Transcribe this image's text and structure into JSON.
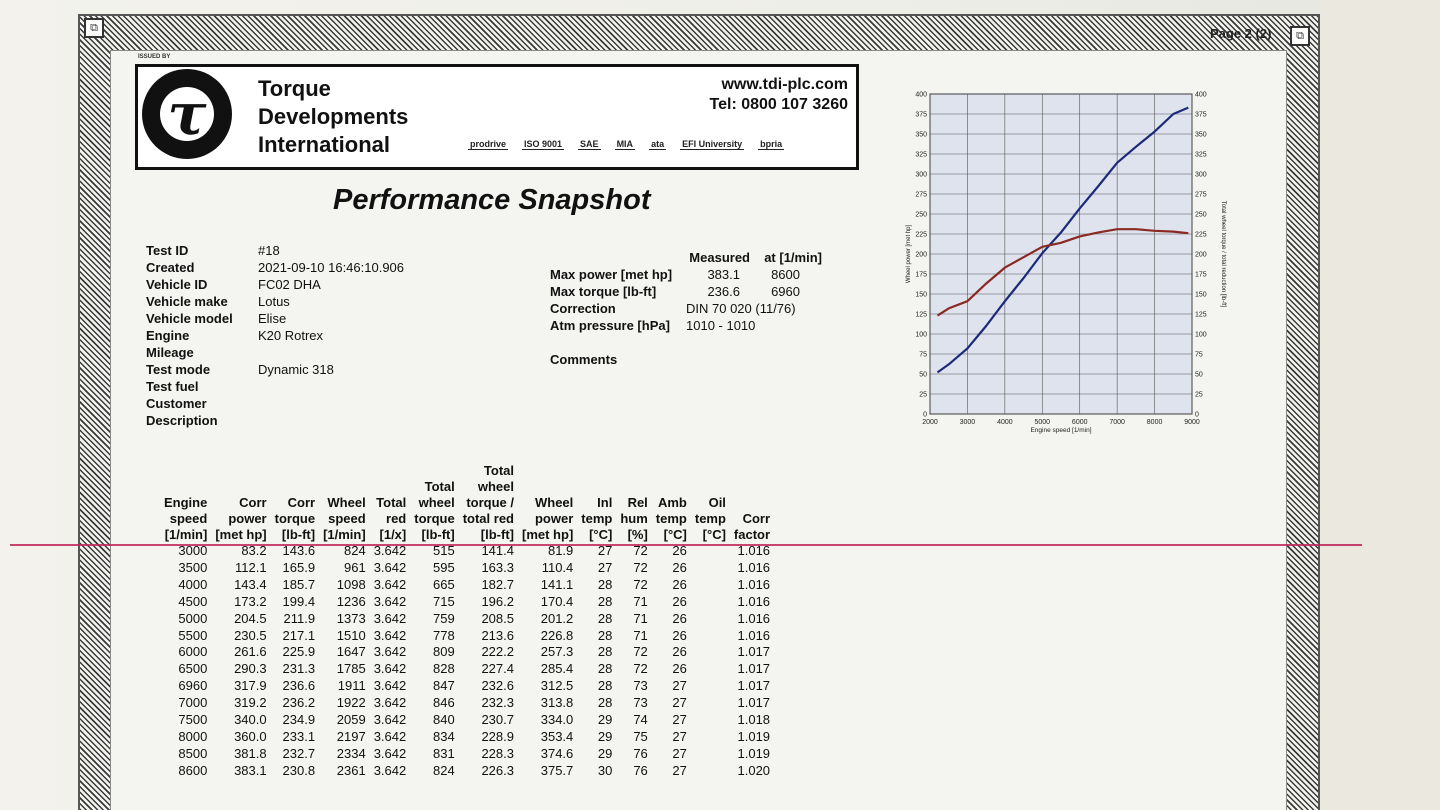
{
  "page_label": "Page 2 (2)",
  "issued_by": "ISSUED BY",
  "company": {
    "line1": "Torque",
    "line2": "Developments",
    "line3": "International",
    "logo_letter": "τ"
  },
  "contact": {
    "website": "www.tdi-plc.com",
    "phone": "Tel: 0800 107 3260"
  },
  "accreditations": [
    "prodrive",
    "ISO 9001",
    "SAE",
    "MIA",
    "ata",
    "EFI University",
    "bpria"
  ],
  "title": "Performance Snapshot",
  "test_info": [
    {
      "label": "Test ID",
      "value": "#18"
    },
    {
      "label": "Created",
      "value": "2021-09-10 16:46:10.906"
    },
    {
      "label": "Vehicle ID",
      "value": "FC02 DHA"
    },
    {
      "label": "Vehicle make",
      "value": "Lotus"
    },
    {
      "label": "Vehicle model",
      "value": "Elise"
    },
    {
      "label": "Engine",
      "value": "K20 Rotrex"
    },
    {
      "label": "Mileage",
      "value": ""
    },
    {
      "label": "Test mode",
      "value": "Dynamic 318"
    },
    {
      "label": "Test fuel",
      "value": ""
    },
    {
      "label": "Customer",
      "value": ""
    },
    {
      "label": "Description",
      "value": ""
    }
  ],
  "measured": {
    "header_measured": "Measured",
    "header_at": "at [1/min]",
    "max_power_label": "Max power [met hp]",
    "max_power_value": "383.1",
    "max_power_rpm": "8600",
    "max_torque_label": "Max torque [lb-ft]",
    "max_torque_value": "236.6",
    "max_torque_rpm": "6960",
    "correction_label": "Correction",
    "correction_value": "DIN 70 020 (11/76)",
    "atm_label": "Atm pressure [hPa]",
    "atm_value": "1010 - 1010",
    "comments_label": "Comments"
  },
  "chart_data": {
    "type": "line",
    "xlabel": "Engine speed [1/min]",
    "ylabel_left": "Wheel power [met hp]",
    "ylabel_right": "Total wheel torque / total reduction [lb-ft]",
    "xlim": [
      2000,
      9000
    ],
    "ylim": [
      0,
      400
    ],
    "x_ticks": [
      2000,
      3000,
      4000,
      5000,
      6000,
      7000,
      8000,
      9000
    ],
    "y_ticks": [
      0,
      25,
      50,
      75,
      100,
      125,
      150,
      175,
      200,
      225,
      250,
      275,
      300,
      325,
      350,
      375,
      400
    ],
    "grid": true,
    "series": [
      {
        "color": "#1c2a7a",
        "x": [
          2200,
          2500,
          3000,
          3500,
          4000,
          4500,
          5000,
          5500,
          6000,
          6500,
          7000,
          7500,
          8000,
          8500,
          8900
        ],
        "values": [
          52,
          62,
          82,
          110,
          141,
          170,
          201,
          227,
          257,
          285,
          314,
          334,
          353,
          375,
          383
        ]
      },
      {
        "color": "#8a2a22",
        "x": [
          2200,
          2500,
          3000,
          3500,
          4000,
          4500,
          5000,
          5500,
          6000,
          6500,
          7000,
          7500,
          8000,
          8500,
          8900
        ],
        "values": [
          123,
          132,
          141,
          163,
          183,
          196,
          209,
          214,
          222,
          227,
          231,
          231,
          229,
          228,
          226
        ]
      }
    ]
  },
  "table": {
    "headers": [
      [
        "Engine",
        "speed",
        "[1/min]"
      ],
      [
        "Corr",
        "power",
        "[met hp]"
      ],
      [
        "Corr",
        "torque",
        "[lb-ft]"
      ],
      [
        "Wheel",
        "speed",
        "[1/min]"
      ],
      [
        "Total",
        "red",
        "[1/x]"
      ],
      [
        "Total",
        "wheel",
        "torque",
        "[lb-ft]"
      ],
      [
        "Total",
        "wheel",
        "torque /",
        "total red",
        "[lb-ft]"
      ],
      [
        "Wheel",
        "power",
        "[met hp]"
      ],
      [
        "Inl",
        "temp",
        "[°C]"
      ],
      [
        "Rel",
        "hum",
        "[%]"
      ],
      [
        "Amb",
        "temp",
        "[°C]"
      ],
      [
        "Oil",
        "temp",
        "[°C]"
      ],
      [
        "Corr",
        "factor"
      ]
    ],
    "rows": [
      [
        "3000",
        "83.2",
        "143.6",
        "824",
        "3.642",
        "515",
        "141.4",
        "81.9",
        "27",
        "72",
        "26",
        "",
        "1.016"
      ],
      [
        "3500",
        "112.1",
        "165.9",
        "961",
        "3.642",
        "595",
        "163.3",
        "110.4",
        "27",
        "72",
        "26",
        "",
        "1.016"
      ],
      [
        "4000",
        "143.4",
        "185.7",
        "1098",
        "3.642",
        "665",
        "182.7",
        "141.1",
        "28",
        "72",
        "26",
        "",
        "1.016"
      ],
      [
        "4500",
        "173.2",
        "199.4",
        "1236",
        "3.642",
        "715",
        "196.2",
        "170.4",
        "28",
        "71",
        "26",
        "",
        "1.016"
      ],
      [
        "5000",
        "204.5",
        "211.9",
        "1373",
        "3.642",
        "759",
        "208.5",
        "201.2",
        "28",
        "71",
        "26",
        "",
        "1.016"
      ],
      [
        "5500",
        "230.5",
        "217.1",
        "1510",
        "3.642",
        "778",
        "213.6",
        "226.8",
        "28",
        "71",
        "26",
        "",
        "1.016"
      ],
      [
        "6000",
        "261.6",
        "225.9",
        "1647",
        "3.642",
        "809",
        "222.2",
        "257.3",
        "28",
        "72",
        "26",
        "",
        "1.017"
      ],
      [
        "6500",
        "290.3",
        "231.3",
        "1785",
        "3.642",
        "828",
        "227.4",
        "285.4",
        "28",
        "72",
        "26",
        "",
        "1.017"
      ],
      [
        "6960",
        "317.9",
        "236.6",
        "1911",
        "3.642",
        "847",
        "232.6",
        "312.5",
        "28",
        "73",
        "27",
        "",
        "1.017"
      ],
      [
        "7000",
        "319.2",
        "236.2",
        "1922",
        "3.642",
        "846",
        "232.3",
        "313.8",
        "28",
        "73",
        "27",
        "",
        "1.017"
      ],
      [
        "7500",
        "340.0",
        "234.9",
        "2059",
        "3.642",
        "840",
        "230.7",
        "334.0",
        "29",
        "74",
        "27",
        "",
        "1.018"
      ],
      [
        "8000",
        "360.0",
        "233.1",
        "2197",
        "3.642",
        "834",
        "228.9",
        "353.4",
        "29",
        "75",
        "27",
        "",
        "1.019"
      ],
      [
        "8500",
        "381.8",
        "232.7",
        "2334",
        "3.642",
        "831",
        "228.3",
        "374.6",
        "29",
        "76",
        "27",
        "",
        "1.019"
      ],
      [
        "8600",
        "383.1",
        "230.8",
        "2361",
        "3.642",
        "824",
        "226.3",
        "375.7",
        "30",
        "76",
        "27",
        "",
        "1.020"
      ]
    ]
  }
}
